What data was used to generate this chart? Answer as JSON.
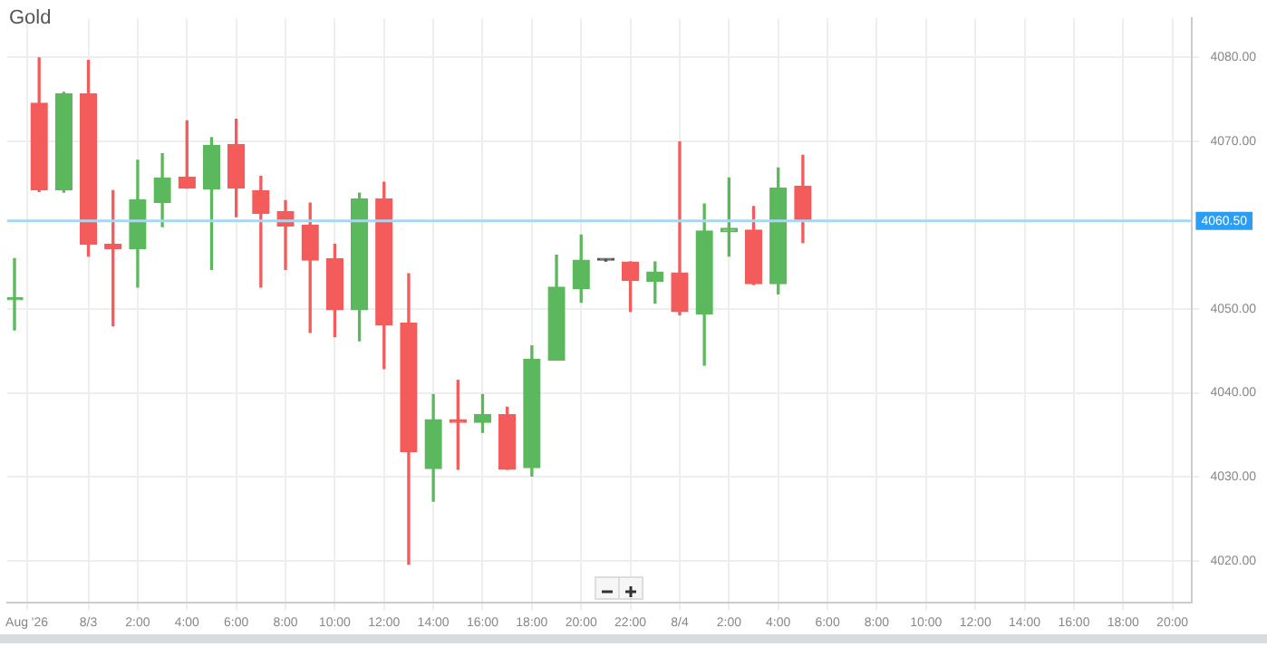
{
  "chart_data": {
    "type": "candlestick",
    "title": "Gold",
    "x": [
      "2026-08-02T21:00",
      "2026-08-02T22:00",
      "2026-08-02T23:00",
      "2026-08-03T00:00",
      "2026-08-03T01:00",
      "2026-08-03T02:00",
      "2026-08-03T03:00",
      "2026-08-03T04:00",
      "2026-08-03T05:00",
      "2026-08-03T06:00",
      "2026-08-03T07:00",
      "2026-08-03T08:00",
      "2026-08-03T09:00",
      "2026-08-03T10:00",
      "2026-08-03T11:00",
      "2026-08-03T12:00",
      "2026-08-03T13:00",
      "2026-08-03T14:00",
      "2026-08-03T15:00",
      "2026-08-03T16:00",
      "2026-08-03T17:00",
      "2026-08-03T18:00",
      "2026-08-03T19:00",
      "2026-08-03T20:00",
      "2026-08-03T21:00",
      "2026-08-03T22:00",
      "2026-08-03T23:00",
      "2026-08-04T00:00",
      "2026-08-04T01:00",
      "2026-08-04T02:00",
      "2026-08-04T03:00",
      "2026-08-04T04:00",
      "2026-08-04T05:00"
    ],
    "ohlc": [
      [
        4051.1,
        4056.0,
        4047.5,
        4051.3
      ],
      [
        4074.5,
        4079.9,
        4064.0,
        4064.2
      ],
      [
        4064.2,
        4075.8,
        4063.9,
        4075.6
      ],
      [
        4075.6,
        4079.6,
        4056.3,
        4057.7
      ],
      [
        4057.7,
        4064.1,
        4048.0,
        4057.2
      ],
      [
        4057.2,
        4067.7,
        4052.6,
        4063.0
      ],
      [
        4062.7,
        4068.5,
        4059.8,
        4065.6
      ],
      [
        4065.7,
        4072.4,
        4064.4,
        4064.4
      ],
      [
        4064.3,
        4070.4,
        4054.7,
        4069.5
      ],
      [
        4069.6,
        4072.6,
        4061.0,
        4064.4
      ],
      [
        4064.1,
        4065.8,
        4052.6,
        4061.4
      ],
      [
        4061.6,
        4062.9,
        4054.7,
        4059.9
      ],
      [
        4060.0,
        4062.6,
        4047.2,
        4055.8
      ],
      [
        4056.0,
        4057.7,
        4046.7,
        4049.9
      ],
      [
        4049.9,
        4063.8,
        4046.2,
        4063.1
      ],
      [
        4063.1,
        4065.1,
        4042.9,
        4048.1
      ],
      [
        4048.3,
        4054.2,
        4019.6,
        4033.0
      ],
      [
        4031.0,
        4039.8,
        4027.1,
        4036.8
      ],
      [
        4036.8,
        4041.5,
        4030.9,
        4036.5
      ],
      [
        4036.5,
        4039.8,
        4035.3,
        4037.4
      ],
      [
        4037.4,
        4038.3,
        4030.9,
        4030.9
      ],
      [
        4031.1,
        4045.6,
        4030.1,
        4044.0
      ],
      [
        4043.9,
        4056.4,
        4043.9,
        4052.6
      ],
      [
        4052.4,
        4058.8,
        4050.8,
        4055.8
      ],
      [
        4055.8,
        4055.9,
        4055.7,
        4055.8
      ],
      [
        4055.6,
        4055.6,
        4049.7,
        4053.4
      ],
      [
        4053.3,
        4055.6,
        4050.7,
        4054.4
      ],
      [
        4054.3,
        4069.9,
        4049.3,
        4049.7
      ],
      [
        4049.4,
        4062.5,
        4043.3,
        4059.3
      ],
      [
        4059.2,
        4065.6,
        4056.3,
        4059.6
      ],
      [
        4059.4,
        4062.2,
        4052.9,
        4053.0
      ],
      [
        4053.0,
        4066.8,
        4051.8,
        4064.4
      ],
      [
        4064.6,
        4068.3,
        4057.9,
        4060.5
      ]
    ],
    "colors": [
      "#5cb85c",
      "#f45b5b",
      "#5cb85c",
      "#f45b5b",
      "#f45b5b",
      "#5cb85c",
      "#5cb85c",
      "#f45b5b",
      "#5cb85c",
      "#f45b5b",
      "#f45b5b",
      "#f45b5b",
      "#f45b5b",
      "#f45b5b",
      "#5cb85c",
      "#f45b5b",
      "#f45b5b",
      "#5cb85c",
      "#f45b5b",
      "#5cb85c",
      "#f45b5b",
      "#5cb85c",
      "#5cb85c",
      "#5cb85c",
      "#555555",
      "#f45b5b",
      "#5cb85c",
      "#f45b5b",
      "#5cb85c",
      "#5cb85c",
      "#f45b5b",
      "#5cb85c",
      "#f45b5b"
    ],
    "xlim": [
      "2026-08-02T20:42",
      "2026-08-04T20:48"
    ],
    "xticks": [
      {
        "value": "2026-08-02T21:30",
        "label": "Aug '26"
      },
      {
        "value": "2026-08-03T00:00",
        "label": "8/3"
      },
      {
        "value": "2026-08-03T02:00",
        "label": "2:00"
      },
      {
        "value": "2026-08-03T04:00",
        "label": "4:00"
      },
      {
        "value": "2026-08-03T06:00",
        "label": "6:00"
      },
      {
        "value": "2026-08-03T08:00",
        "label": "8:00"
      },
      {
        "value": "2026-08-03T10:00",
        "label": "10:00"
      },
      {
        "value": "2026-08-03T12:00",
        "label": "12:00"
      },
      {
        "value": "2026-08-03T14:00",
        "label": "14:00"
      },
      {
        "value": "2026-08-03T16:00",
        "label": "16:00"
      },
      {
        "value": "2026-08-03T18:00",
        "label": "18:00"
      },
      {
        "value": "2026-08-03T20:00",
        "label": "20:00"
      },
      {
        "value": "2026-08-03T22:00",
        "label": "22:00"
      },
      {
        "value": "2026-08-04T00:00",
        "label": "8/4"
      },
      {
        "value": "2026-08-04T02:00",
        "label": "2:00"
      },
      {
        "value": "2026-08-04T04:00",
        "label": "4:00"
      },
      {
        "value": "2026-08-04T06:00",
        "label": "6:00"
      },
      {
        "value": "2026-08-04T08:00",
        "label": "8:00"
      },
      {
        "value": "2026-08-04T10:00",
        "label": "10:00"
      },
      {
        "value": "2026-08-04T12:00",
        "label": "12:00"
      },
      {
        "value": "2026-08-04T14:00",
        "label": "14:00"
      },
      {
        "value": "2026-08-04T16:00",
        "label": "16:00"
      },
      {
        "value": "2026-08-04T18:00",
        "label": "18:00"
      },
      {
        "value": "2026-08-04T20:00",
        "label": "20:00"
      }
    ],
    "ylim": [
      4015,
      4084.6
    ],
    "yticks": [
      {
        "value": 4020,
        "label": "4020.00"
      },
      {
        "value": 4030,
        "label": "4030.00"
      },
      {
        "value": 4040,
        "label": "4040.00"
      },
      {
        "value": 4050,
        "label": "4050.00"
      },
      {
        "value": 4070,
        "label": "4070.00"
      },
      {
        "value": 4080,
        "label": "4080.00"
      }
    ],
    "ref_lines": [
      {
        "axis": "y",
        "value": 4060.5,
        "label": "4060.50",
        "color": "#a8d8f0"
      }
    ],
    "grid": true,
    "legend": false
  }
}
